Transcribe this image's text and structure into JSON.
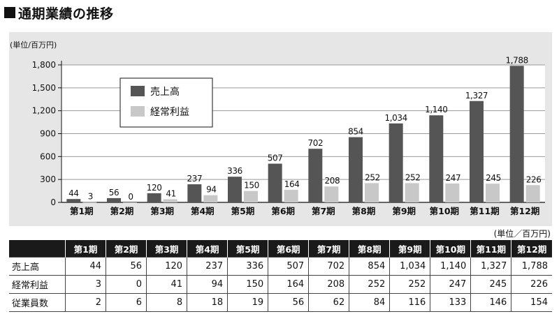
{
  "page": {
    "heading": "通期業績の推移",
    "chart_unit": "(単位/百万円)",
    "table_unit": "(単位／百万円)"
  },
  "colors": {
    "sales": "#555555",
    "profit": "#c8c8c8",
    "panel": "#e6e6e6"
  },
  "chart_data": {
    "type": "bar",
    "title": "",
    "xlabel": "",
    "ylabel": "(単位/百万円)",
    "ylim": [
      0,
      1800
    ],
    "yticks": [
      0,
      300,
      600,
      900,
      1200,
      1500,
      1800
    ],
    "ytick_labels": [
      "0",
      "300",
      "600",
      "900",
      "1,200",
      "1,500",
      "1,800"
    ],
    "grid": "horizontal",
    "legend_position": "top-left",
    "categories": [
      "第1期",
      "第2期",
      "第3期",
      "第4期",
      "第5期",
      "第6期",
      "第7期",
      "第8期",
      "第9期",
      "第10期",
      "第11期",
      "第12期"
    ],
    "series": [
      {
        "name": "売上高",
        "values": [
          44,
          56,
          120,
          237,
          336,
          507,
          702,
          854,
          1034,
          1140,
          1327,
          1788
        ],
        "labels": [
          "44",
          "56",
          "120",
          "237",
          "336",
          "507",
          "702",
          "854",
          "1,034",
          "1,140",
          "1,327",
          "1,788"
        ]
      },
      {
        "name": "経常利益",
        "values": [
          3,
          0,
          41,
          94,
          150,
          164,
          208,
          252,
          252,
          247,
          245,
          226
        ],
        "labels": [
          "3",
          "0",
          "41",
          "94",
          "150",
          "164",
          "208",
          "252",
          "252",
          "247",
          "245",
          "226"
        ]
      }
    ]
  },
  "table": {
    "columns": [
      "第1期",
      "第2期",
      "第3期",
      "第4期",
      "第5期",
      "第6期",
      "第7期",
      "第8期",
      "第9期",
      "第10期",
      "第11期",
      "第12期"
    ],
    "rows": [
      {
        "label": "売上高",
        "cells": [
          "44",
          "56",
          "120",
          "237",
          "336",
          "507",
          "702",
          "854",
          "1,034",
          "1,140",
          "1,327",
          "1,788"
        ]
      },
      {
        "label": "経常利益",
        "cells": [
          "3",
          "0",
          "41",
          "94",
          "150",
          "164",
          "208",
          "252",
          "252",
          "247",
          "245",
          "226"
        ]
      },
      {
        "label": "従業員数",
        "cells": [
          "2",
          "6",
          "8",
          "18",
          "19",
          "56",
          "62",
          "84",
          "116",
          "133",
          "146",
          "154"
        ]
      }
    ]
  }
}
